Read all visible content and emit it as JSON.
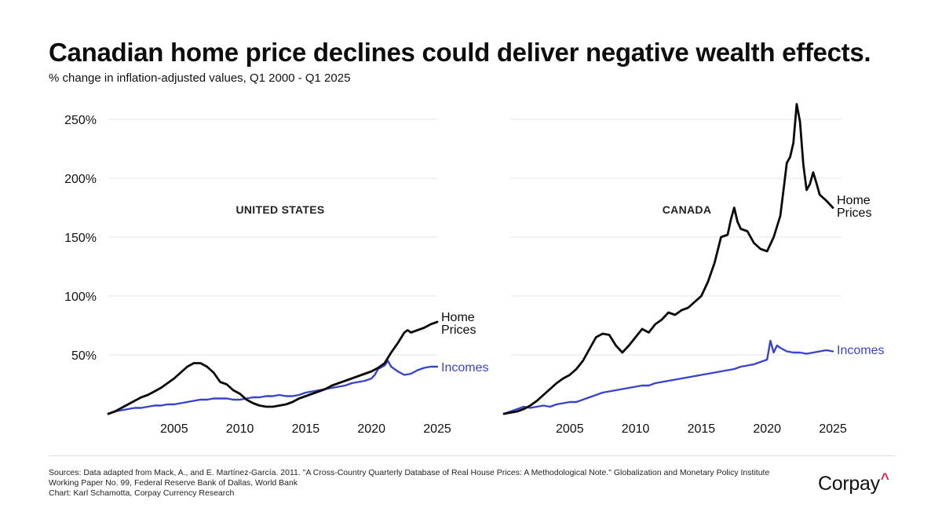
{
  "title": "Canadian home price declines could deliver negative wealth effects.",
  "subtitle": "% change in inflation-adjusted values, Q1 2000 - Q1 2025",
  "colors": {
    "home_prices": "#0a0a0a",
    "incomes": "#3a44c9",
    "grid": "#e6e6e6",
    "accent": "#e8244b"
  },
  "chart_data": [
    {
      "type": "line",
      "panel": "UNITED STATES",
      "xlim": [
        2000,
        2025
      ],
      "ylim": [
        0,
        250
      ],
      "xticks": [
        2005,
        2010,
        2015,
        2020,
        2025
      ],
      "yticks": [
        50,
        100,
        150,
        200,
        250
      ],
      "ytick_labels": [
        "50%",
        "100%",
        "150%",
        "200%",
        "250%"
      ],
      "series": [
        {
          "name": "Home Prices",
          "label_lines": [
            "Home",
            "Prices"
          ],
          "x": [
            2000.0,
            2000.5,
            2001.0,
            2001.5,
            2002.0,
            2002.5,
            2003.0,
            2003.5,
            2004.0,
            2004.5,
            2005.0,
            2005.5,
            2006.0,
            2006.5,
            2007.0,
            2007.5,
            2008.0,
            2008.5,
            2009.0,
            2009.5,
            2010.0,
            2010.5,
            2011.0,
            2011.5,
            2012.0,
            2012.5,
            2013.0,
            2013.5,
            2014.0,
            2014.5,
            2015.0,
            2015.5,
            2016.0,
            2016.5,
            2017.0,
            2017.5,
            2018.0,
            2018.5,
            2019.0,
            2019.5,
            2020.0,
            2020.5,
            2021.0,
            2021.5,
            2022.0,
            2022.5,
            2022.75,
            2023.0,
            2023.5,
            2024.0,
            2024.5,
            2025.0
          ],
          "values": [
            0,
            2,
            5,
            8,
            11,
            14,
            16,
            19,
            22,
            26,
            30,
            35,
            40,
            43,
            43,
            40,
            35,
            27,
            25,
            20,
            17,
            12,
            9,
            7,
            6,
            6,
            7,
            8,
            10,
            13,
            15,
            17,
            19,
            21,
            24,
            26,
            28,
            30,
            32,
            34,
            36,
            39,
            43,
            52,
            60,
            69,
            71,
            69,
            71,
            73,
            76,
            78
          ]
        },
        {
          "name": "Incomes",
          "label_lines": [
            "Incomes"
          ],
          "x": [
            2000.0,
            2000.5,
            2001.0,
            2001.5,
            2002.0,
            2002.5,
            2003.0,
            2003.5,
            2004.0,
            2004.5,
            2005.0,
            2005.5,
            2006.0,
            2006.5,
            2007.0,
            2007.5,
            2008.0,
            2008.5,
            2009.0,
            2009.5,
            2010.0,
            2010.5,
            2011.0,
            2011.5,
            2012.0,
            2012.5,
            2013.0,
            2013.5,
            2014.0,
            2014.5,
            2015.0,
            2015.5,
            2016.0,
            2016.5,
            2017.0,
            2017.5,
            2018.0,
            2018.5,
            2019.0,
            2019.5,
            2020.0,
            2020.25,
            2020.5,
            2021.0,
            2021.25,
            2021.5,
            2022.0,
            2022.5,
            2023.0,
            2023.5,
            2024.0,
            2024.5,
            2025.0
          ],
          "values": [
            0,
            2,
            3,
            4,
            5,
            5,
            6,
            7,
            7,
            8,
            8,
            9,
            10,
            11,
            12,
            12,
            13,
            13,
            13,
            12,
            12,
            13,
            14,
            14,
            15,
            15,
            16,
            15,
            15,
            16,
            18,
            19,
            20,
            21,
            22,
            23,
            24,
            26,
            27,
            28,
            30,
            33,
            38,
            41,
            45,
            40,
            36,
            33,
            34,
            37,
            39,
            40,
            40
          ]
        }
      ]
    },
    {
      "type": "line",
      "panel": "CANADA",
      "xlim": [
        2000,
        2025
      ],
      "ylim": [
        0,
        250
      ],
      "xticks": [
        2005,
        2010,
        2015,
        2020,
        2025
      ],
      "yticks": [
        50,
        100,
        150,
        200,
        250
      ],
      "ytick_labels": [
        "50%",
        "100%",
        "150%",
        "200%",
        "250%"
      ],
      "series": [
        {
          "name": "Home Prices",
          "label_lines": [
            "Home",
            "Prices"
          ],
          "x": [
            2000.0,
            2000.5,
            2001.0,
            2001.5,
            2002.0,
            2002.5,
            2003.0,
            2003.5,
            2004.0,
            2004.5,
            2005.0,
            2005.5,
            2006.0,
            2006.5,
            2007.0,
            2007.5,
            2008.0,
            2008.5,
            2009.0,
            2009.5,
            2010.0,
            2010.5,
            2011.0,
            2011.5,
            2012.0,
            2012.5,
            2013.0,
            2013.5,
            2014.0,
            2014.5,
            2015.0,
            2015.5,
            2016.0,
            2016.5,
            2017.0,
            2017.25,
            2017.5,
            2017.75,
            2018.0,
            2018.5,
            2019.0,
            2019.5,
            2020.0,
            2020.5,
            2021.0,
            2021.25,
            2021.5,
            2021.75,
            2022.0,
            2022.25,
            2022.5,
            2022.75,
            2023.0,
            2023.25,
            2023.5,
            2023.75,
            2024.0,
            2024.5,
            2025.0
          ],
          "values": [
            0,
            1,
            2,
            4,
            7,
            11,
            16,
            21,
            26,
            30,
            33,
            38,
            45,
            55,
            65,
            68,
            67,
            58,
            52,
            58,
            65,
            72,
            69,
            76,
            80,
            86,
            84,
            88,
            90,
            95,
            100,
            112,
            128,
            150,
            152,
            165,
            175,
            163,
            157,
            155,
            145,
            140,
            138,
            150,
            168,
            190,
            213,
            218,
            230,
            263,
            248,
            212,
            190,
            195,
            205,
            196,
            186,
            181,
            175
          ]
        },
        {
          "name": "Incomes",
          "label_lines": [
            "Incomes"
          ],
          "x": [
            2000.0,
            2000.5,
            2001.0,
            2001.5,
            2002.0,
            2002.5,
            2003.0,
            2003.5,
            2004.0,
            2004.5,
            2005.0,
            2005.5,
            2006.0,
            2006.5,
            2007.0,
            2007.5,
            2008.0,
            2008.5,
            2009.0,
            2009.5,
            2010.0,
            2010.5,
            2011.0,
            2011.5,
            2012.0,
            2012.5,
            2013.0,
            2013.5,
            2014.0,
            2014.5,
            2015.0,
            2015.5,
            2016.0,
            2016.5,
            2017.0,
            2017.5,
            2018.0,
            2018.5,
            2019.0,
            2019.5,
            2020.0,
            2020.25,
            2020.5,
            2020.75,
            2021.0,
            2021.5,
            2022.0,
            2022.5,
            2023.0,
            2023.5,
            2024.0,
            2024.5,
            2025.0
          ],
          "values": [
            0,
            2,
            4,
            6,
            5,
            6,
            7,
            6,
            8,
            9,
            10,
            10,
            12,
            14,
            16,
            18,
            19,
            20,
            21,
            22,
            23,
            24,
            24,
            26,
            27,
            28,
            29,
            30,
            31,
            32,
            33,
            34,
            35,
            36,
            37,
            38,
            40,
            41,
            42,
            44,
            46,
            62,
            52,
            58,
            56,
            53,
            52,
            52,
            51,
            52,
            53,
            54,
            53
          ]
        }
      ]
    }
  ],
  "sources": [
    "Sources: Data adapted from Mack, A., and E. Martínez-García. 2011. \"A Cross-Country Quarterly Database of Real House Prices: A Methodological Note.\" Globalization and Monetary Policy Institute",
    "Working Paper No. 99, Federal Reserve Bank of Dallas, World Bank",
    "Chart: Karl Schamotta, Corpay Currency Research"
  ],
  "logo": {
    "text": "Corpay",
    "mark": "^"
  }
}
